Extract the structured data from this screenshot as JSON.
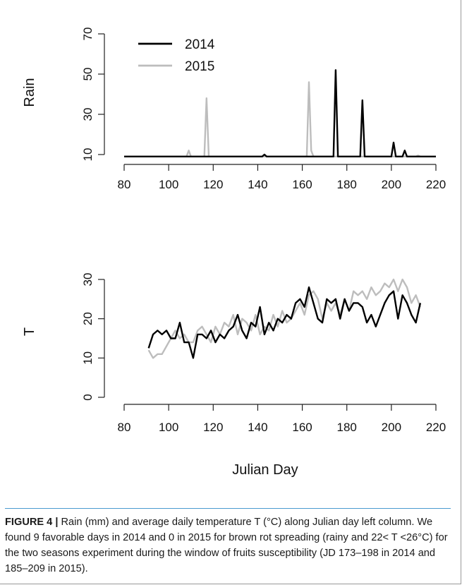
{
  "chart_data": [
    {
      "type": "line",
      "ylabel": "Rain",
      "xlim": [
        80,
        220
      ],
      "ylim": [
        10,
        70
      ],
      "x_ticks": [
        80,
        100,
        120,
        140,
        160,
        180,
        200,
        220
      ],
      "y_ticks": [
        10,
        30,
        50,
        70
      ],
      "legend_placement": "top-left",
      "series": [
        {
          "name": "2014",
          "color": "#000000",
          "x": [
            80,
            142,
            143,
            144,
            174,
            175,
            176,
            186,
            187,
            188,
            200,
            201,
            202,
            205,
            206,
            207,
            220
          ],
          "y": [
            9,
            9,
            10,
            9,
            9,
            52,
            9,
            9,
            37,
            9,
            9,
            16,
            9,
            9,
            12,
            9,
            9
          ]
        },
        {
          "name": "2015",
          "color": "#bdbdbd",
          "x": [
            80,
            108,
            109,
            110,
            116,
            117,
            118,
            162,
            163,
            164,
            165,
            211,
            212,
            213
          ],
          "y": [
            9,
            9,
            12,
            9,
            9,
            38,
            9,
            9,
            46,
            12,
            9,
            9,
            9.5,
            9
          ]
        }
      ]
    },
    {
      "type": "line",
      "ylabel": "T",
      "xlabel": "Julian Day",
      "xlim": [
        80,
        220
      ],
      "ylim": [
        0,
        30
      ],
      "x_ticks": [
        80,
        100,
        120,
        140,
        160,
        180,
        200,
        220
      ],
      "y_ticks": [
        0,
        10,
        20,
        30
      ],
      "series": [
        {
          "name": "2014",
          "color": "#000000",
          "x": [
            91,
            93,
            95,
            97,
            99,
            101,
            103,
            105,
            107,
            109,
            111,
            113,
            115,
            117,
            119,
            121,
            123,
            125,
            127,
            129,
            131,
            133,
            135,
            137,
            139,
            141,
            143,
            145,
            147,
            149,
            151,
            153,
            155,
            157,
            159,
            161,
            163,
            165,
            167,
            169,
            171,
            173,
            175,
            177,
            179,
            181,
            183,
            185,
            187,
            189,
            191,
            193,
            195,
            197,
            199,
            201,
            203,
            205,
            207,
            209,
            211,
            213
          ],
          "y": [
            12.5,
            16,
            17,
            16,
            17,
            15,
            15,
            19,
            14,
            14,
            10,
            16,
            16,
            15,
            17,
            14,
            16,
            15,
            17,
            18,
            21,
            17,
            15,
            19,
            18,
            23,
            16,
            19,
            17,
            20,
            19,
            21,
            20,
            24,
            25,
            23,
            28,
            24,
            20,
            19,
            25,
            24,
            25,
            20,
            25,
            22,
            24,
            24,
            23,
            19,
            21,
            18,
            21,
            24,
            26,
            27,
            20,
            26,
            24,
            21,
            19,
            24
          ]
        },
        {
          "name": "2015",
          "color": "#bdbdbd",
          "x": [
            91,
            93,
            95,
            97,
            99,
            101,
            103,
            105,
            107,
            109,
            111,
            113,
            115,
            117,
            119,
            121,
            123,
            125,
            127,
            129,
            131,
            133,
            135,
            137,
            139,
            141,
            143,
            145,
            147,
            149,
            151,
            153,
            155,
            157,
            159,
            161,
            163,
            165,
            167,
            169,
            171,
            173,
            175,
            177,
            179,
            181,
            183,
            185,
            187,
            189,
            191,
            193,
            195,
            197,
            199,
            201,
            203,
            205,
            207,
            209,
            211,
            213
          ],
          "y": [
            12,
            10,
            11,
            11,
            13,
            15,
            17,
            15,
            16,
            14,
            14,
            17,
            18,
            16,
            14,
            18,
            16,
            19,
            18,
            21,
            16,
            20,
            19,
            17,
            21,
            16,
            18,
            17,
            21,
            18,
            22,
            19,
            20,
            22,
            24,
            21,
            26,
            27,
            25,
            20,
            24,
            22,
            24,
            21,
            25,
            22,
            27,
            26,
            27,
            25,
            28,
            26,
            27,
            29,
            28,
            30,
            27,
            30,
            28,
            24,
            26,
            23
          ]
        }
      ]
    }
  ],
  "caption": {
    "label": "FIGURE 4 |",
    "text": " Rain (mm) and average daily temperature T (°C) along Julian day left column. We found 9 favorable days in 2014 and 0 in 2015 for brown rot spreading (rainy and 22< T <26°C) for the two seasons experiment during the window of fruits susceptibility (JD 173–198 in 2014 and 185–209 in 2015)."
  }
}
